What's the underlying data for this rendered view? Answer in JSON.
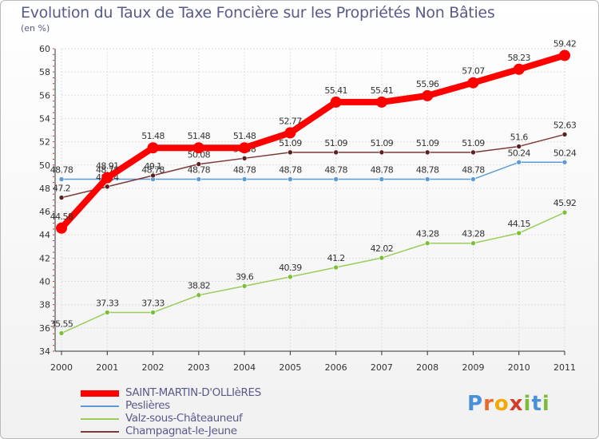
{
  "title": "Evolution du Taux de Taxe Foncière sur les Propriétés Non Bâties",
  "unit": "(en %)",
  "brand": {
    "letters": [
      "P",
      "r",
      "o",
      "x",
      "i",
      "t",
      "i"
    ],
    "colors": [
      "#4a90d9",
      "#e8692a",
      "#f2a900",
      "#d63b2a",
      "#7bbd3b",
      "#4a90d9",
      "#7bbd3b"
    ]
  },
  "chart_data": {
    "type": "line",
    "title": "Evolution du Taux de Taxe Foncière sur les Propriétés Non Bâties",
    "ylabel": "(en %)",
    "xlabel": "",
    "x": [
      "2000",
      "2001",
      "2002",
      "2003",
      "2004",
      "2005",
      "2006",
      "2007",
      "2008",
      "2009",
      "2010",
      "2011"
    ],
    "ylim": [
      34,
      60
    ],
    "yticks": [
      34,
      36,
      38,
      40,
      42,
      44,
      46,
      48,
      50,
      52,
      54,
      56,
      58,
      60
    ],
    "grid": true,
    "series": [
      {
        "name": "Peslières",
        "color": "#5b9bd5",
        "values": [
          48.78,
          48.78,
          48.78,
          48.78,
          48.78,
          48.78,
          48.78,
          48.78,
          48.78,
          48.78,
          50.24,
          50.24
        ],
        "labels": [
          "48.78",
          "48.78",
          "48.78",
          "48.78",
          "48.78",
          "48.78",
          "48.78",
          "48.78",
          "48.78",
          "48.78",
          "50.24",
          "50.24"
        ]
      },
      {
        "name": "Valz-sous-Châteauneuf",
        "color": "#9acd5a",
        "values": [
          35.55,
          37.33,
          37.33,
          38.82,
          39.6,
          40.39,
          41.2,
          42.02,
          43.28,
          43.28,
          44.15,
          45.92
        ],
        "labels": [
          "35.55",
          "37.33",
          "37.33",
          "38.82",
          "39.6",
          "40.39",
          "41.2",
          "42.02",
          "43.28",
          "43.28",
          "44.15",
          "45.92"
        ]
      },
      {
        "name": "Champagnat-le-Jeune",
        "color": "#7b3a3a",
        "values": [
          47.2,
          48.14,
          49.1,
          50.08,
          50.58,
          51.09,
          51.09,
          51.09,
          51.09,
          51.09,
          51.6,
          52.63
        ],
        "labels": [
          "47.2",
          "48.14",
          "49.1",
          "50.08",
          "50.58",
          "51.09",
          "51.09",
          "51.09",
          "51.09",
          "51.09",
          "51.6",
          "52.63"
        ]
      },
      {
        "name": "SAINT-MARTIN-D'OLLIèRES",
        "color": "#ff0000",
        "values": [
          44.58,
          48.91,
          51.48,
          51.48,
          51.48,
          52.77,
          55.41,
          55.41,
          55.96,
          57.07,
          58.23,
          59.42
        ],
        "labels": [
          "44.58",
          "48.91",
          "51.48",
          "51.48",
          "51.48",
          "52.77",
          "55.41",
          "55.41",
          "55.96",
          "57.07",
          "58.23",
          "59.42"
        ]
      }
    ],
    "legend": [
      "SAINT-MARTIN-D'OLLIèRES",
      "Peslières",
      "Valz-sous-Châteauneuf",
      "Champagnat-le-Jeune"
    ]
  }
}
